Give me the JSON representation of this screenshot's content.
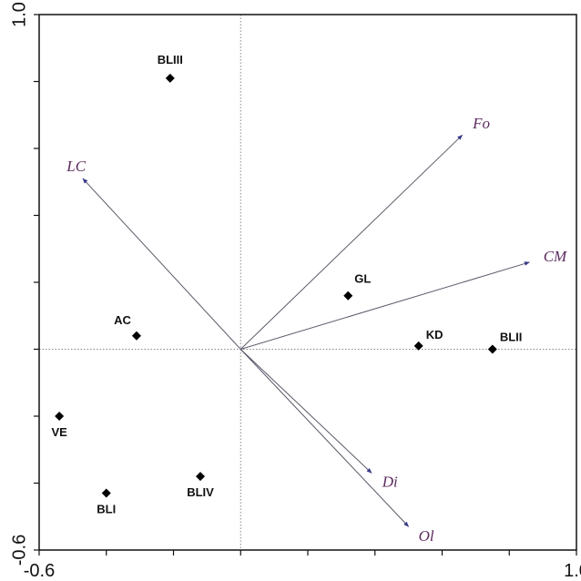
{
  "chart_data": {
    "type": "scatter",
    "title": "",
    "xlabel": "",
    "ylabel": "",
    "xlim": [
      -0.6,
      1.0
    ],
    "ylim": [
      -0.6,
      1.0
    ],
    "x_tick_labels": [
      {
        "value": -0.6,
        "label": "-0.6"
      },
      {
        "value": 1.0,
        "label": "1.0"
      }
    ],
    "y_tick_labels": [
      {
        "value": 1.0,
        "label": "1.0"
      },
      {
        "value": -0.6,
        "label": "-0.6"
      }
    ],
    "minor_tick_step": 0.2,
    "grid": false,
    "reference_lines": {
      "x": 0,
      "y": 0
    },
    "points": [
      {
        "label": "BLIII",
        "x": -0.21,
        "y": 0.81
      },
      {
        "label": "AC",
        "x": -0.31,
        "y": 0.04
      },
      {
        "label": "GL",
        "x": 0.32,
        "y": 0.16
      },
      {
        "label": "KD",
        "x": 0.53,
        "y": 0.01
      },
      {
        "label": "BLII",
        "x": 0.75,
        "y": 0.0
      },
      {
        "label": "VE",
        "x": -0.54,
        "y": -0.2
      },
      {
        "label": "BLI",
        "x": -0.4,
        "y": -0.43
      },
      {
        "label": "BLIV",
        "x": -0.12,
        "y": -0.38
      }
    ],
    "vectors": [
      {
        "label": "Fo",
        "x": 0.66,
        "y": 0.64
      },
      {
        "label": "LC",
        "x": -0.47,
        "y": 0.51
      },
      {
        "label": "CM",
        "x": 0.86,
        "y": 0.26
      },
      {
        "label": "Di",
        "x": 0.39,
        "y": -0.37
      },
      {
        "label": "Ol",
        "x": 0.5,
        "y": -0.53
      }
    ],
    "colors": {
      "frame": "#111111",
      "points": "#000000",
      "vectors": "#5a5a6a",
      "vector_labels": "#5b2a5e",
      "reference_lines": "#888888"
    }
  }
}
